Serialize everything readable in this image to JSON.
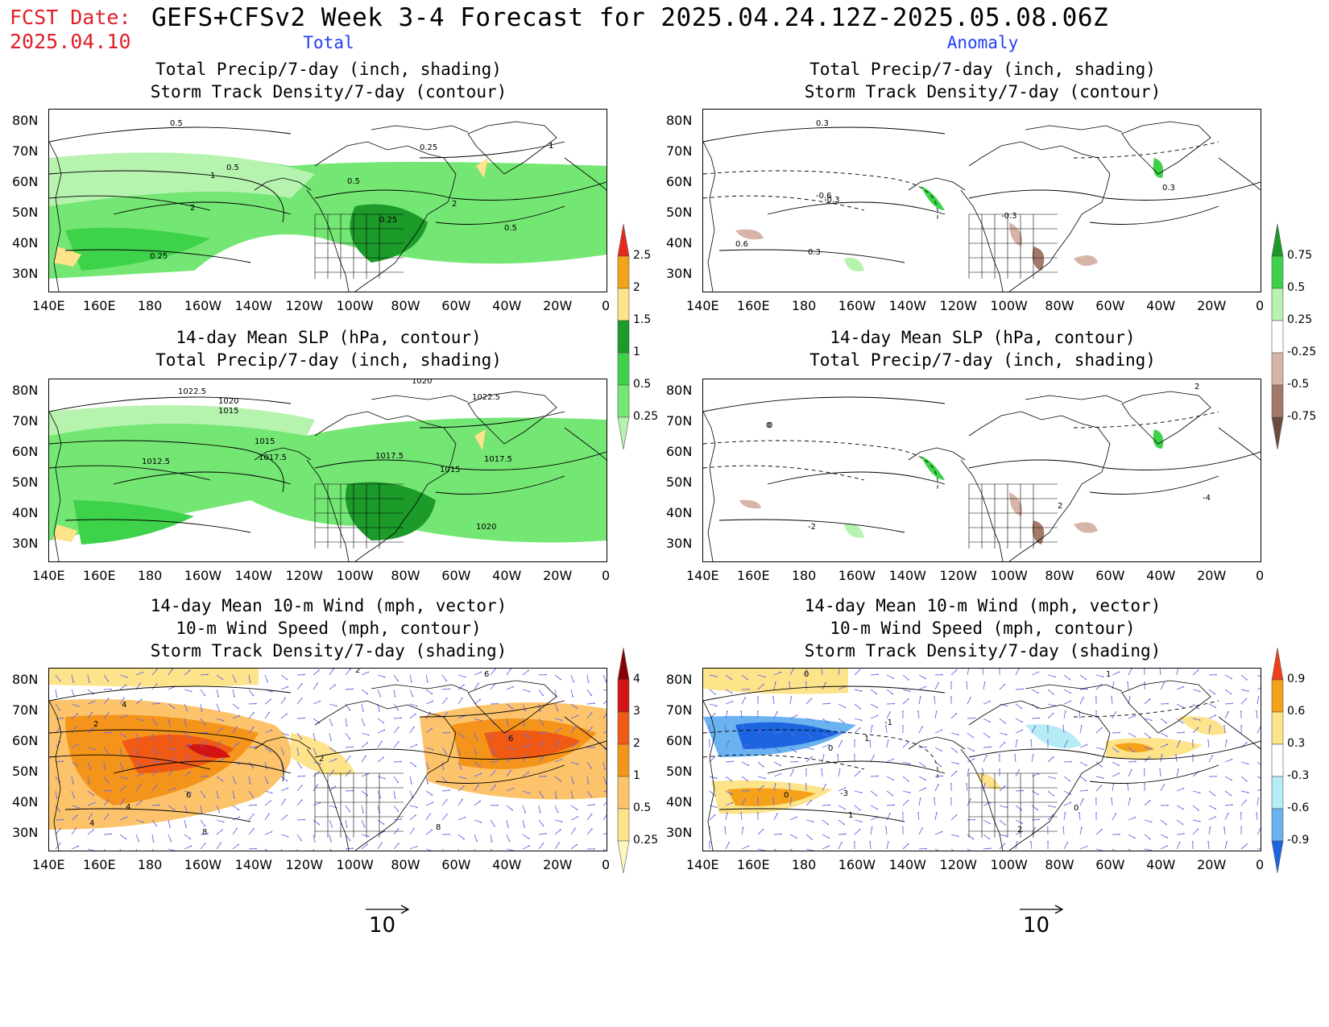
{
  "header": {
    "fcst_label": "FCST Date:",
    "fcst_date": "2025.04.10",
    "title": "GEFS+CFSv2 Week 3-4 Forecast for 2025.04.24.12Z-2025.05.08.06Z",
    "left_column": "Total",
    "right_column": "Anomaly"
  },
  "axes": {
    "lat_labels": [
      "80N",
      "70N",
      "60N",
      "50N",
      "40N",
      "30N"
    ],
    "lon_labels": [
      "140E",
      "160E",
      "180",
      "160W",
      "140W",
      "120W",
      "100W",
      "80W",
      "60W",
      "40W",
      "20W",
      "0"
    ]
  },
  "panels": [
    {
      "id": "precip-storm-total",
      "title_lines": [
        "Total Precip/7-day (inch, shading)",
        "Storm Track Density/7-day (contour)"
      ],
      "contour_labels": [
        "0.5",
        "0.25",
        "1",
        "0.5",
        "1",
        "2",
        "0.5",
        "2",
        "0.25",
        "0.5",
        "0.25",
        "1"
      ]
    },
    {
      "id": "precip-storm-anom",
      "title_lines": [
        "Total Precip/7-day (inch, shading)",
        "Storm Track Density/7-day (contour)"
      ],
      "contour_labels": [
        "0.3",
        "-0.6",
        "-0.3",
        "0.6",
        "0.3",
        "0.3",
        "-0.3"
      ]
    },
    {
      "id": "slp-precip-total",
      "title_lines": [
        "14-day Mean SLP (hPa, contour)",
        "Total Precip/7-day (inch, shading)"
      ],
      "contour_labels": [
        "1022.5",
        "1020",
        "1015",
        "1020",
        "1022.5",
        "1012.5",
        "1015",
        "1017.5",
        "1017.5",
        "1015",
        "1017.5",
        "1020"
      ]
    },
    {
      "id": "slp-precip-anom",
      "title_lines": [
        "14-day Mean SLP (hPa, contour)",
        "Total Precip/7-day (inch, shading)"
      ],
      "contour_labels": [
        "2",
        "-2",
        "0",
        "2",
        "-4",
        "0"
      ]
    },
    {
      "id": "wind-storm-total",
      "title_lines": [
        "14-day Mean 10-m Wind (mph, vector)",
        "10-m Wind Speed (mph, contour)",
        "Storm Track Density/7-day (shading)"
      ],
      "contour_labels": [
        "2",
        "4",
        "2",
        "6",
        "4",
        "6",
        "8",
        "2",
        "6",
        "8",
        "4"
      ]
    },
    {
      "id": "wind-storm-anom",
      "title_lines": [
        "14-day Mean 10-m Wind (mph, vector)",
        "10-m Wind Speed (mph, contour)",
        "Storm Track Density/7-day (shading)"
      ],
      "contour_labels": [
        "0",
        "0",
        "-1",
        "1",
        "0",
        "-3",
        "1",
        "2",
        "0",
        "1"
      ]
    }
  ],
  "colorbars": {
    "precip_total": {
      "labels": [
        "2.5",
        "2",
        "1.5",
        "1",
        "0.5",
        "0.25"
      ],
      "colors": [
        "#e8281c",
        "#f3a21a",
        "#fde38a",
        "#1c9a2a",
        "#3ed24a",
        "#74e674",
        "#b6f3ae"
      ]
    },
    "precip_anom": {
      "labels": [
        "0.75",
        "0.5",
        "0.25",
        "-0.25",
        "-0.5",
        "-0.75"
      ],
      "colors": [
        "#1b9a2a",
        "#3ed24a",
        "#b6f3ae",
        "#ffffff",
        "#d7b4a8",
        "#a37a6a",
        "#6b4a3c"
      ]
    },
    "storm_total": {
      "labels": [
        "4",
        "3",
        "2",
        "1",
        "0.5",
        "0.25"
      ],
      "colors": [
        "#8b0000",
        "#d21414",
        "#f05a14",
        "#f5941a",
        "#fcc36a",
        "#fde38a",
        "#fff7c0"
      ]
    },
    "storm_anom": {
      "labels": [
        "0.9",
        "0.6",
        "0.3",
        "-0.3",
        "-0.6",
        "-0.9"
      ],
      "colors": [
        "#f0401a",
        "#f5a21a",
        "#fde38a",
        "#ffffff",
        "#b6ecf5",
        "#6ab2f0",
        "#1c64e0"
      ]
    }
  },
  "reference_vector": {
    "value": "10"
  }
}
